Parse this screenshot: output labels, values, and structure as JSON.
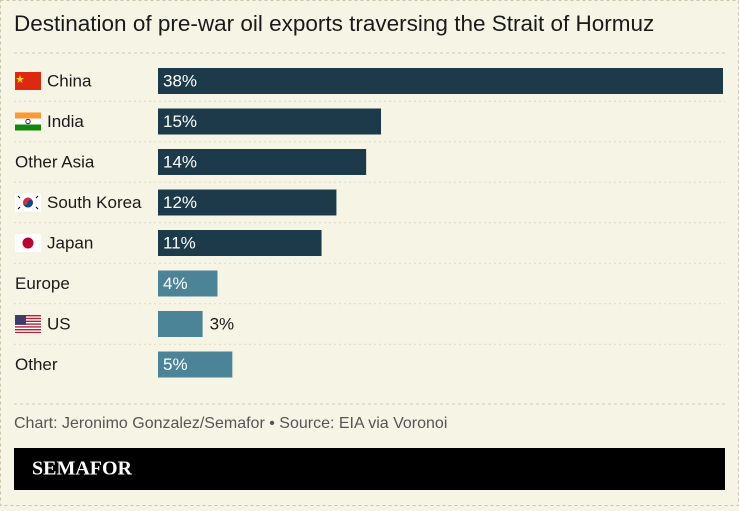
{
  "chart_data": {
    "type": "bar",
    "orientation": "horizontal",
    "title": "Destination of pre-war oil exports traversing the Strait of Hormuz",
    "categories": [
      "China",
      "India",
      "Other Asia",
      "South Korea",
      "Japan",
      "Europe",
      "US",
      "Other"
    ],
    "values": [
      38,
      15,
      14,
      12,
      11,
      4,
      3,
      5
    ],
    "value_labels": [
      "38%",
      "15%",
      "14%",
      "12%",
      "11%",
      "4%",
      "3%",
      "5%"
    ],
    "colors": [
      "#1d3a4a",
      "#1d3a4a",
      "#1d3a4a",
      "#1d3a4a",
      "#1d3a4a",
      "#4b8397",
      "#4b8397",
      "#4b8397"
    ],
    "source": "Chart: Jeronimo Gonzalez/Semafor • Source: EIA via Voronoi",
    "brand": "SEMAFOR"
  }
}
